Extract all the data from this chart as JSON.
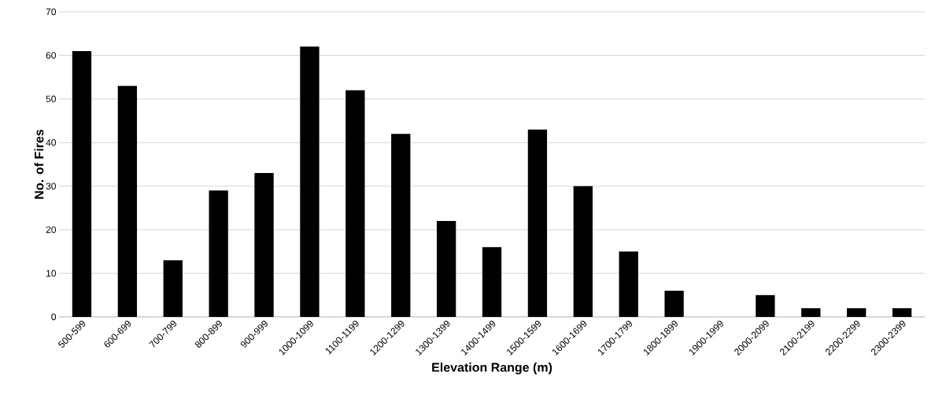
{
  "chart_data": {
    "type": "bar",
    "xlabel": "Elevation Range (m)",
    "ylabel": "No. of Fires",
    "categories": [
      "500-599",
      "600-699",
      "700-799",
      "800-899",
      "900-999",
      "1000-1099",
      "1100-1199",
      "1200-1299",
      "1300-1399",
      "1400-1499",
      "1500-1599",
      "1600-1699",
      "1700-1799",
      "1800-1899",
      "1900-1999",
      "2000-2099",
      "2100-2199",
      "2200-2299",
      "2300-2399"
    ],
    "values": [
      61,
      53,
      13,
      29,
      33,
      62,
      52,
      42,
      22,
      16,
      43,
      30,
      15,
      6,
      0,
      5,
      2,
      2,
      2
    ],
    "color": "#000000",
    "ylim": [
      0,
      70
    ],
    "yticks": [
      0,
      10,
      20,
      30,
      40,
      50,
      60,
      70
    ],
    "grid": "y"
  }
}
